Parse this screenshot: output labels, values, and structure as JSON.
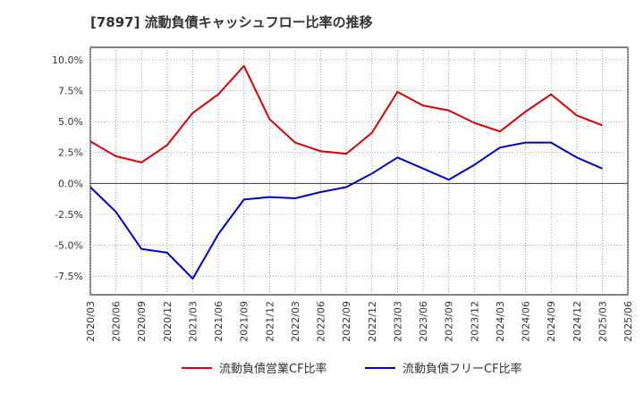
{
  "chart_data": {
    "type": "line",
    "title": "[7897]  流動負債キャッシュフロー比率の推移",
    "xlabel": "",
    "ylabel": "",
    "x": [
      "2020/03",
      "2020/06",
      "2020/09",
      "2020/12",
      "2021/03",
      "2021/06",
      "2021/09",
      "2021/12",
      "2022/03",
      "2022/06",
      "2022/09",
      "2022/12",
      "2023/03",
      "2023/06",
      "2023/09",
      "2023/12",
      "2024/03",
      "2024/06",
      "2024/09",
      "2024/12",
      "2025/03",
      "2025/06"
    ],
    "y_ticks": [
      "10.0%",
      "7.5%",
      "5.0%",
      "2.5%",
      "0.0%",
      "-2.5%",
      "-5.0%",
      "-7.5%"
    ],
    "ylim": [
      -9,
      11
    ],
    "grid": true,
    "legend_position": "bottom",
    "series": [
      {
        "name": "流動負債営業CF比率",
        "color": "#dd0000",
        "values": [
          3.4,
          2.2,
          1.7,
          3.1,
          5.7,
          7.2,
          9.5,
          5.2,
          3.3,
          2.6,
          2.4,
          4.1,
          7.4,
          6.3,
          5.9,
          4.9,
          4.2,
          5.8,
          7.2,
          5.5,
          4.7,
          null
        ]
      },
      {
        "name": "流動負債フリーCF比率",
        "color": "#0000cc",
        "values": [
          -0.3,
          -2.3,
          -5.3,
          -5.6,
          -7.7,
          -4.1,
          -1.3,
          -1.1,
          -1.2,
          -0.7,
          -0.3,
          0.8,
          2.1,
          1.2,
          0.3,
          1.5,
          2.9,
          3.3,
          3.3,
          2.1,
          1.2,
          null
        ]
      }
    ]
  }
}
